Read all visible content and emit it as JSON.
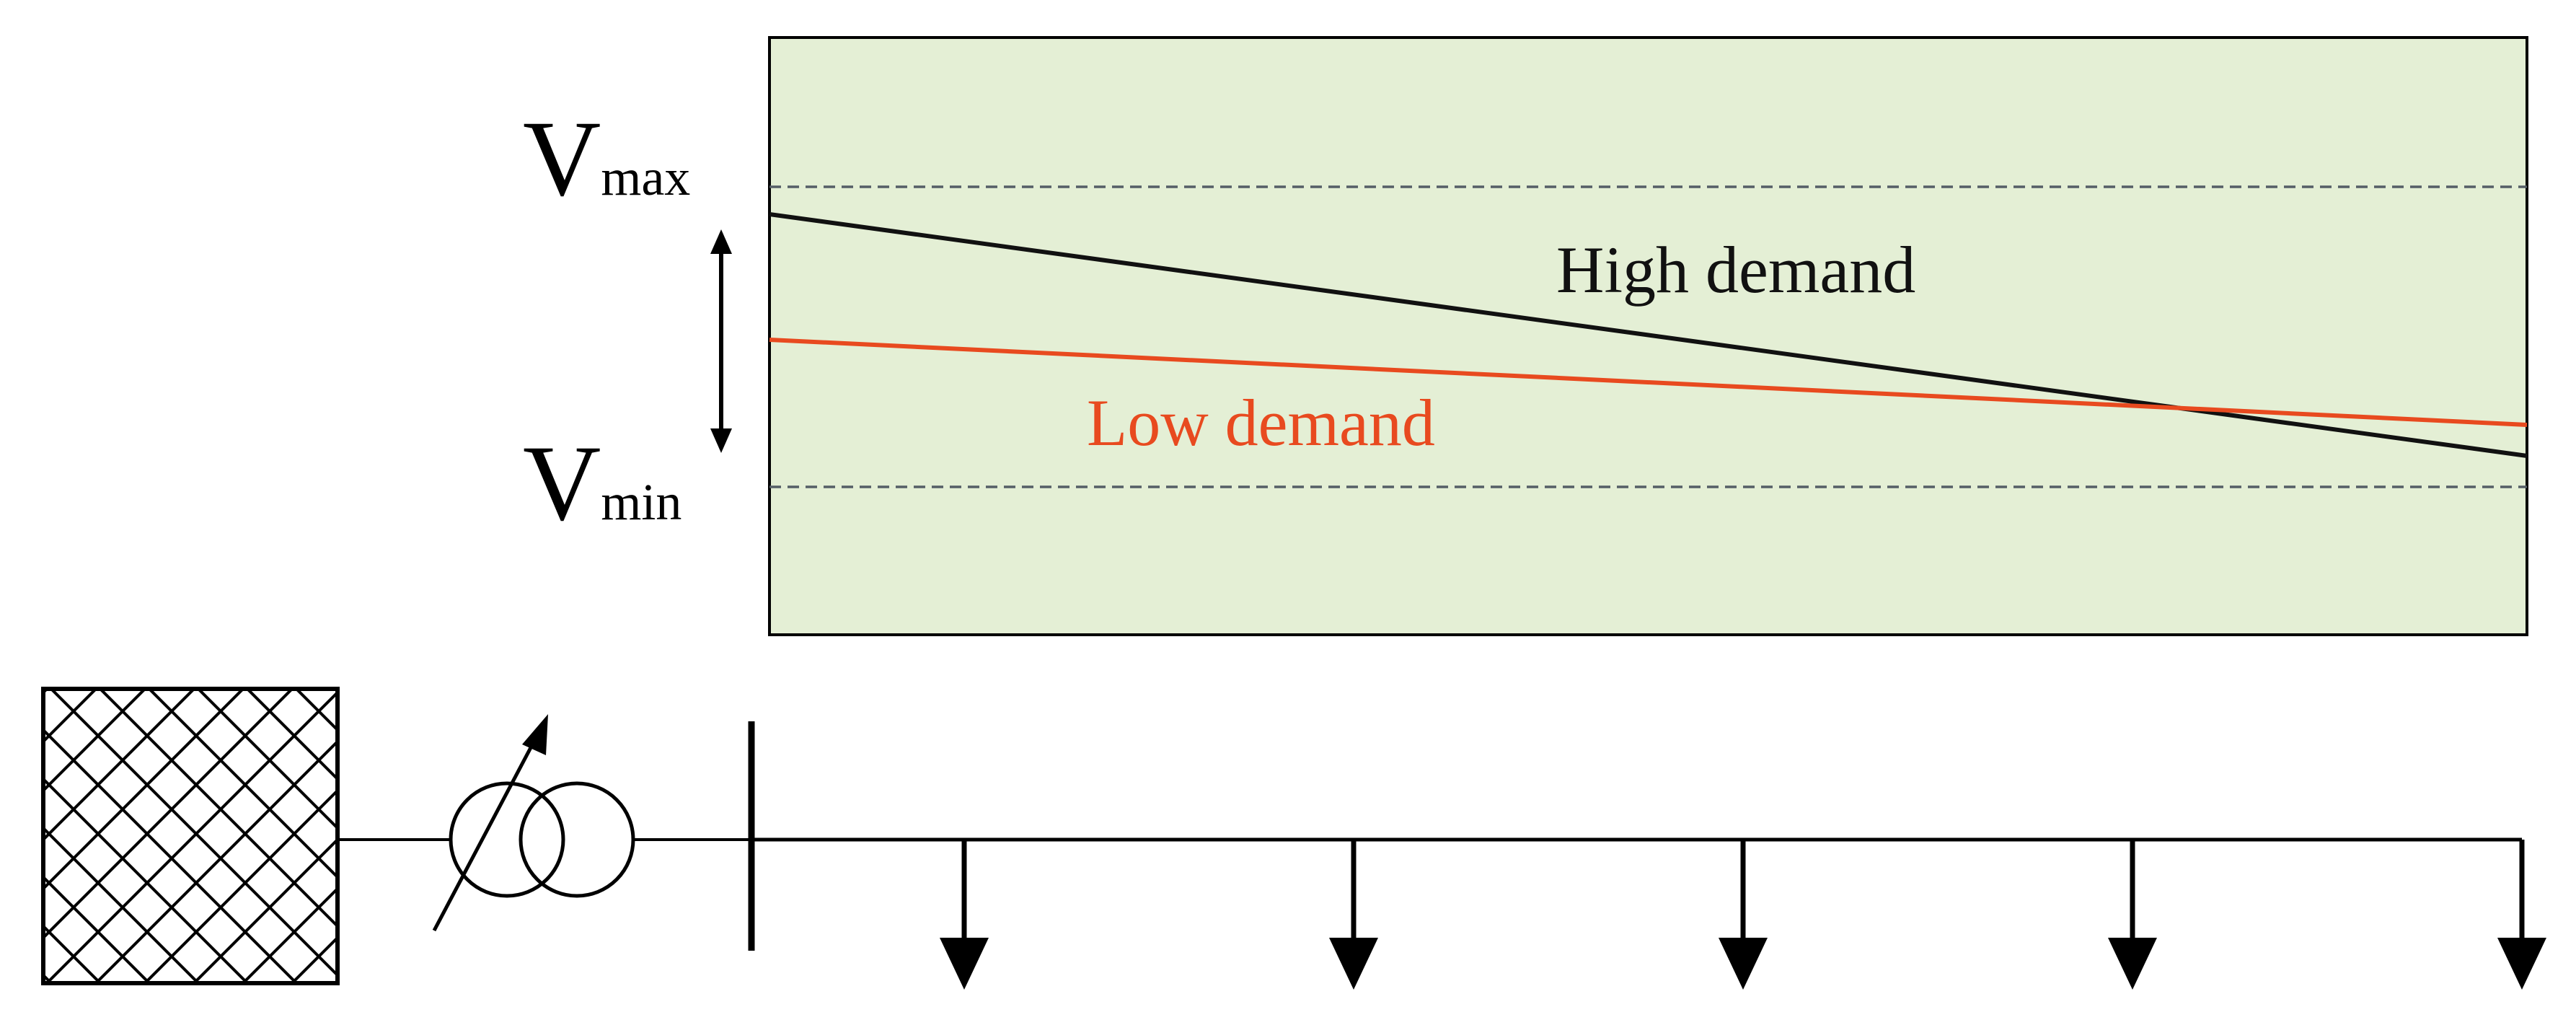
{
  "labels": {
    "vmax_main": "V",
    "vmax_sub": "max",
    "vmin_main": "V",
    "vmin_sub": "min",
    "high_demand": "High demand",
    "low_demand": "Low demand"
  },
  "colors": {
    "panel_fill": "#e4efd5",
    "high_demand_line": "#111111",
    "low_demand_line": "#e84a1f",
    "limit_line": "#555e66",
    "ink": "#000000"
  },
  "loads": {
    "count": 5
  },
  "icons": [
    "grid-source-hatched-box-icon",
    "tap-changer-transformer-icon",
    "load-arrow-icon"
  ]
}
